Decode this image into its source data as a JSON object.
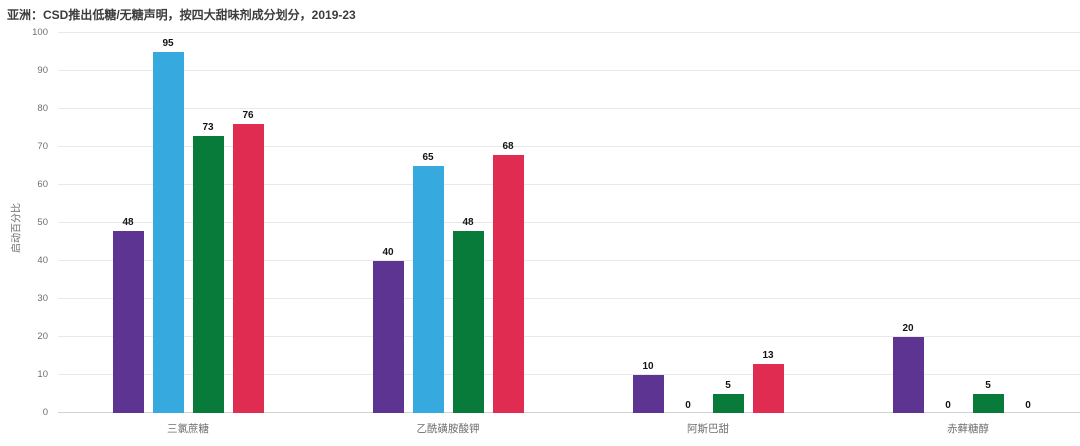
{
  "page": {
    "background": "#ffffff"
  },
  "chart_data": {
    "type": "bar",
    "title": "亚洲：CSD推出低糖/无糖声明，按四大甜味剂成分划分，2019-23",
    "xlabel": "",
    "ylabel": "启动百分比",
    "ylim": [
      0,
      100
    ],
    "ytick_interval": 10,
    "grid": true,
    "legend": "none",
    "value_labels": true,
    "categories": [
      "三氯蔗糖",
      "乙酰磺胺酸钾",
      "阿斯巴甜",
      "赤藓糖醇"
    ],
    "series": [
      {
        "name": "series-1-purple",
        "color": "#5D3491",
        "values": [
          48,
          40,
          10,
          20
        ]
      },
      {
        "name": "series-2-blue",
        "color": "#36A9DF",
        "values": [
          95,
          65,
          0,
          0
        ]
      },
      {
        "name": "series-3-green",
        "color": "#087A3A",
        "values": [
          73,
          48,
          5,
          5
        ]
      },
      {
        "name": "series-4-red",
        "color": "#E02C50",
        "values": [
          76,
          68,
          13,
          0
        ]
      }
    ]
  },
  "style": {
    "gridline_color": "#e9e9e9",
    "axis_line_color": "#d2d2d2",
    "tick_label_color": "#6e6e6e",
    "title_color": "#3c3c3c",
    "value_label_color": "#141414"
  }
}
